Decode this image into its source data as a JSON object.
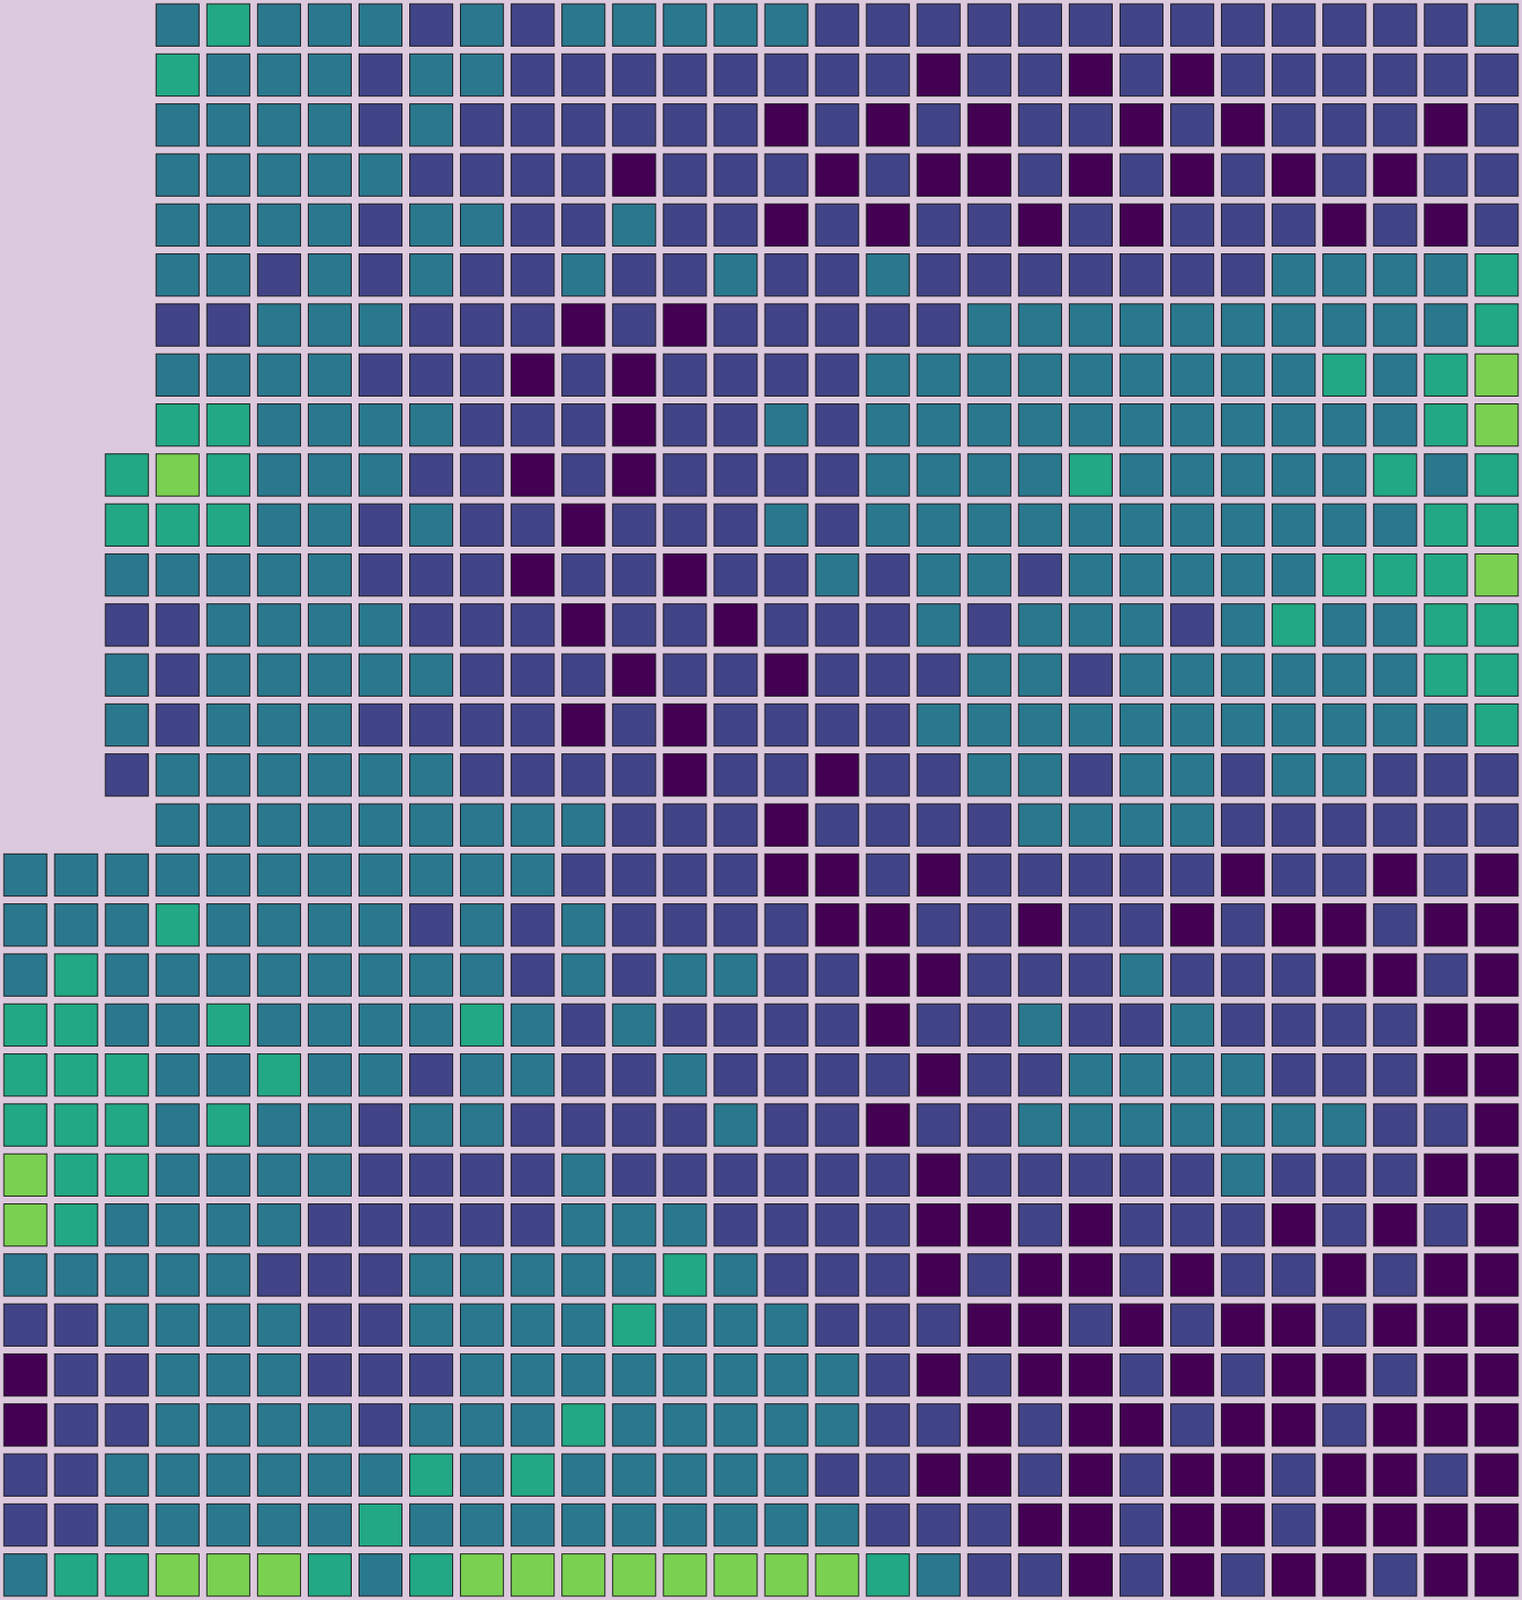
{
  "chart_data": {
    "type": "heatmap",
    "color": "viridis",
    "zlim": [
      0,
      5
    ],
    "tick_labels": false,
    "cells": [
      [
        null,
        null,
        null,
        2,
        3,
        2,
        2,
        2,
        1,
        2,
        1,
        2,
        2,
        2,
        2,
        2,
        1,
        1,
        1,
        1,
        1,
        1,
        1,
        1,
        1,
        1,
        1,
        1,
        1,
        2
      ],
      [
        null,
        null,
        null,
        3,
        2,
        2,
        2,
        1,
        2,
        2,
        1,
        1,
        1,
        1,
        1,
        1,
        1,
        1,
        0,
        1,
        1,
        0,
        1,
        0,
        1,
        1,
        1,
        1,
        1,
        1
      ],
      [
        null,
        null,
        null,
        2,
        2,
        2,
        2,
        1,
        2,
        1,
        1,
        1,
        1,
        1,
        1,
        0,
        1,
        0,
        1,
        0,
        1,
        1,
        0,
        1,
        0,
        1,
        1,
        1,
        0,
        1
      ],
      [
        null,
        null,
        null,
        2,
        2,
        2,
        2,
        2,
        1,
        1,
        1,
        1,
        0,
        1,
        1,
        1,
        0,
        1,
        0,
        0,
        1,
        0,
        1,
        0,
        1,
        0,
        1,
        0,
        1,
        1
      ],
      [
        null,
        null,
        null,
        2,
        2,
        2,
        2,
        1,
        2,
        2,
        1,
        1,
        2,
        1,
        1,
        0,
        1,
        0,
        1,
        1,
        0,
        1,
        0,
        1,
        1,
        1,
        0,
        1,
        0,
        1
      ],
      [
        null,
        null,
        null,
        2,
        2,
        1,
        2,
        1,
        2,
        1,
        1,
        2,
        1,
        1,
        2,
        1,
        1,
        2,
        1,
        1,
        1,
        1,
        1,
        1,
        1,
        2,
        2,
        2,
        2,
        3
      ],
      [
        null,
        null,
        null,
        1,
        1,
        2,
        2,
        2,
        1,
        1,
        1,
        0,
        1,
        0,
        1,
        1,
        1,
        1,
        1,
        2,
        2,
        2,
        2,
        2,
        2,
        2,
        2,
        2,
        2,
        3
      ],
      [
        null,
        null,
        null,
        2,
        2,
        2,
        2,
        1,
        1,
        1,
        0,
        1,
        0,
        1,
        1,
        1,
        1,
        2,
        2,
        2,
        2,
        2,
        2,
        2,
        2,
        2,
        3,
        2,
        3,
        4
      ],
      [
        null,
        null,
        null,
        3,
        3,
        2,
        2,
        2,
        2,
        1,
        1,
        1,
        0,
        1,
        1,
        2,
        1,
        2,
        2,
        2,
        2,
        2,
        2,
        2,
        2,
        2,
        2,
        2,
        3,
        4
      ],
      [
        null,
        null,
        3,
        4,
        3,
        2,
        2,
        2,
        1,
        1,
        0,
        1,
        0,
        1,
        1,
        1,
        1,
        2,
        2,
        2,
        2,
        3,
        2,
        2,
        2,
        2,
        2,
        3,
        2,
        3
      ],
      [
        null,
        null,
        3,
        3,
        3,
        2,
        2,
        1,
        2,
        1,
        1,
        0,
        1,
        1,
        1,
        2,
        1,
        2,
        2,
        2,
        2,
        2,
        2,
        2,
        2,
        2,
        2,
        2,
        3,
        3
      ],
      [
        null,
        null,
        2,
        2,
        2,
        2,
        2,
        1,
        1,
        1,
        0,
        1,
        1,
        0,
        1,
        1,
        2,
        1,
        2,
        2,
        1,
        2,
        2,
        2,
        2,
        2,
        3,
        3,
        3,
        4
      ],
      [
        null,
        null,
        1,
        1,
        2,
        2,
        2,
        2,
        1,
        1,
        1,
        0,
        1,
        1,
        0,
        1,
        1,
        1,
        2,
        1,
        2,
        2,
        2,
        1,
        2,
        3,
        2,
        2,
        3,
        3
      ],
      [
        null,
        null,
        2,
        1,
        2,
        2,
        2,
        2,
        2,
        1,
        1,
        1,
        0,
        1,
        1,
        0,
        1,
        1,
        1,
        2,
        2,
        1,
        2,
        2,
        2,
        2,
        2,
        2,
        3,
        3
      ],
      [
        null,
        null,
        2,
        1,
        2,
        2,
        2,
        1,
        1,
        1,
        1,
        0,
        1,
        0,
        1,
        1,
        1,
        1,
        2,
        2,
        2,
        2,
        2,
        2,
        2,
        2,
        2,
        2,
        2,
        3
      ],
      [
        null,
        null,
        1,
        2,
        2,
        2,
        2,
        2,
        2,
        1,
        1,
        1,
        1,
        0,
        1,
        1,
        0,
        1,
        1,
        2,
        2,
        1,
        2,
        2,
        1,
        2,
        2,
        1,
        1,
        1
      ],
      [
        null,
        null,
        null,
        2,
        2,
        2,
        2,
        2,
        2,
        2,
        2,
        2,
        1,
        1,
        1,
        0,
        1,
        1,
        1,
        1,
        2,
        2,
        2,
        2,
        1,
        1,
        1,
        1,
        1,
        1
      ],
      [
        2,
        2,
        2,
        2,
        2,
        2,
        2,
        2,
        2,
        2,
        2,
        1,
        1,
        1,
        1,
        0,
        0,
        1,
        0,
        1,
        1,
        1,
        1,
        1,
        0,
        1,
        1,
        0,
        1,
        0
      ],
      [
        2,
        2,
        2,
        3,
        2,
        2,
        2,
        2,
        1,
        2,
        1,
        2,
        1,
        1,
        1,
        1,
        0,
        0,
        1,
        1,
        0,
        1,
        1,
        0,
        1,
        0,
        0,
        1,
        0,
        0
      ],
      [
        2,
        3,
        2,
        2,
        2,
        2,
        2,
        2,
        2,
        2,
        1,
        2,
        1,
        2,
        2,
        1,
        1,
        0,
        0,
        1,
        1,
        1,
        2,
        1,
        1,
        1,
        0,
        0,
        1,
        0
      ],
      [
        3,
        3,
        2,
        2,
        3,
        2,
        2,
        2,
        2,
        3,
        2,
        1,
        2,
        1,
        1,
        1,
        1,
        0,
        1,
        1,
        2,
        1,
        1,
        2,
        1,
        1,
        1,
        1,
        0,
        0
      ],
      [
        3,
        3,
        3,
        2,
        2,
        3,
        2,
        2,
        1,
        2,
        2,
        1,
        1,
        2,
        1,
        1,
        1,
        1,
        0,
        1,
        1,
        2,
        2,
        2,
        2,
        1,
        1,
        1,
        0,
        0
      ],
      [
        3,
        3,
        3,
        2,
        3,
        2,
        2,
        1,
        2,
        2,
        1,
        1,
        1,
        1,
        2,
        1,
        1,
        0,
        1,
        1,
        2,
        2,
        2,
        2,
        2,
        2,
        2,
        1,
        1,
        0
      ],
      [
        4,
        3,
        3,
        2,
        2,
        2,
        2,
        1,
        1,
        1,
        1,
        2,
        1,
        1,
        1,
        1,
        1,
        1,
        0,
        1,
        1,
        1,
        1,
        1,
        2,
        1,
        1,
        1,
        0,
        0
      ],
      [
        4,
        3,
        2,
        2,
        2,
        2,
        1,
        1,
        1,
        1,
        1,
        2,
        2,
        2,
        1,
        1,
        1,
        1,
        0,
        0,
        1,
        0,
        1,
        1,
        1,
        0,
        1,
        0,
        1,
        0
      ],
      [
        2,
        2,
        2,
        2,
        2,
        1,
        1,
        1,
        2,
        2,
        2,
        2,
        2,
        3,
        2,
        1,
        1,
        1,
        0,
        1,
        0,
        0,
        1,
        0,
        1,
        1,
        0,
        1,
        0,
        0
      ],
      [
        1,
        1,
        2,
        2,
        2,
        2,
        1,
        1,
        2,
        2,
        2,
        2,
        3,
        2,
        2,
        2,
        1,
        1,
        1,
        0,
        0,
        1,
        0,
        1,
        0,
        0,
        1,
        0,
        0,
        0
      ],
      [
        0,
        1,
        1,
        2,
        2,
        2,
        1,
        1,
        1,
        2,
        2,
        2,
        2,
        2,
        2,
        2,
        2,
        1,
        0,
        1,
        0,
        0,
        1,
        0,
        1,
        0,
        0,
        1,
        0,
        0
      ],
      [
        0,
        1,
        1,
        2,
        2,
        2,
        2,
        1,
        2,
        2,
        2,
        3,
        2,
        2,
        2,
        2,
        2,
        1,
        1,
        0,
        1,
        0,
        0,
        1,
        0,
        0,
        1,
        0,
        0,
        0
      ],
      [
        1,
        1,
        2,
        2,
        2,
        2,
        2,
        2,
        3,
        2,
        3,
        2,
        2,
        2,
        2,
        2,
        1,
        1,
        0,
        0,
        1,
        0,
        1,
        0,
        0,
        1,
        0,
        0,
        1,
        0
      ],
      [
        1,
        1,
        2,
        2,
        2,
        2,
        2,
        3,
        2,
        2,
        2,
        2,
        2,
        2,
        2,
        2,
        2,
        1,
        1,
        1,
        0,
        0,
        1,
        0,
        0,
        1,
        0,
        0,
        0,
        0
      ],
      [
        2,
        3,
        3,
        4,
        4,
        4,
        3,
        2,
        3,
        4,
        4,
        4,
        4,
        4,
        4,
        4,
        4,
        3,
        2,
        1,
        1,
        0,
        1,
        0,
        1,
        0,
        0,
        1,
        0,
        0
      ]
    ]
  }
}
